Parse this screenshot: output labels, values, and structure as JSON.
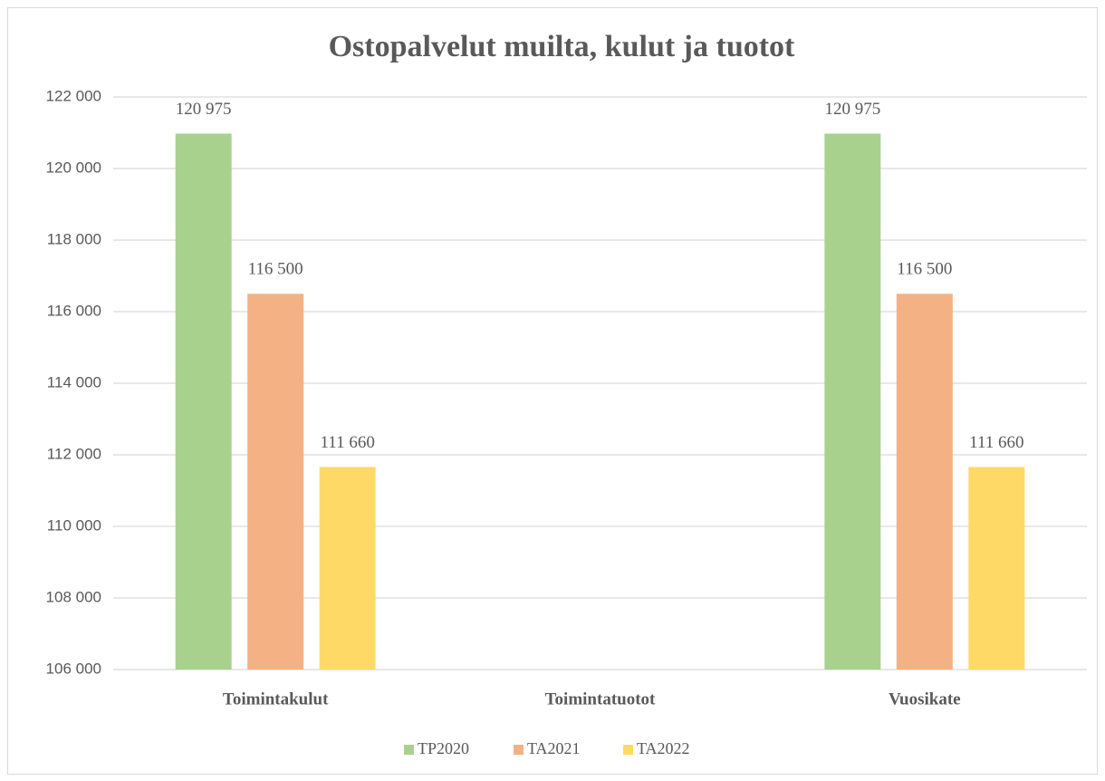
{
  "chart_data": {
    "type": "bar",
    "title": "Ostopalvelut muilta, kulut ja tuotot",
    "categories": [
      "Toimintakulut",
      "Toimintatuotot",
      "Vuosikate"
    ],
    "series": [
      {
        "name": "TP2020",
        "color": "#a9d18e",
        "values": [
          120975,
          null,
          120975
        ],
        "value_labels": [
          "120 975",
          null,
          "120 975"
        ]
      },
      {
        "name": "TA2021",
        "color": "#f4b183",
        "values": [
          116500,
          null,
          116500
        ],
        "value_labels": [
          "116 500",
          null,
          "116 500"
        ]
      },
      {
        "name": "TA2022",
        "color": "#ffd966",
        "values": [
          111660,
          null,
          111660
        ],
        "value_labels": [
          "111 660",
          null,
          "111 660"
        ]
      }
    ],
    "ylim": [
      106000,
      122000
    ],
    "yticks": [
      {
        "value": 106000,
        "label": "106 000"
      },
      {
        "value": 108000,
        "label": "108 000"
      },
      {
        "value": 110000,
        "label": "110 000"
      },
      {
        "value": 112000,
        "label": "112 000"
      },
      {
        "value": 114000,
        "label": "114 000"
      },
      {
        "value": 116000,
        "label": "116 000"
      },
      {
        "value": 118000,
        "label": "118 000"
      },
      {
        "value": 120000,
        "label": "120 000"
      },
      {
        "value": 122000,
        "label": "122 000"
      }
    ],
    "grid": true,
    "legend": "bottom"
  }
}
